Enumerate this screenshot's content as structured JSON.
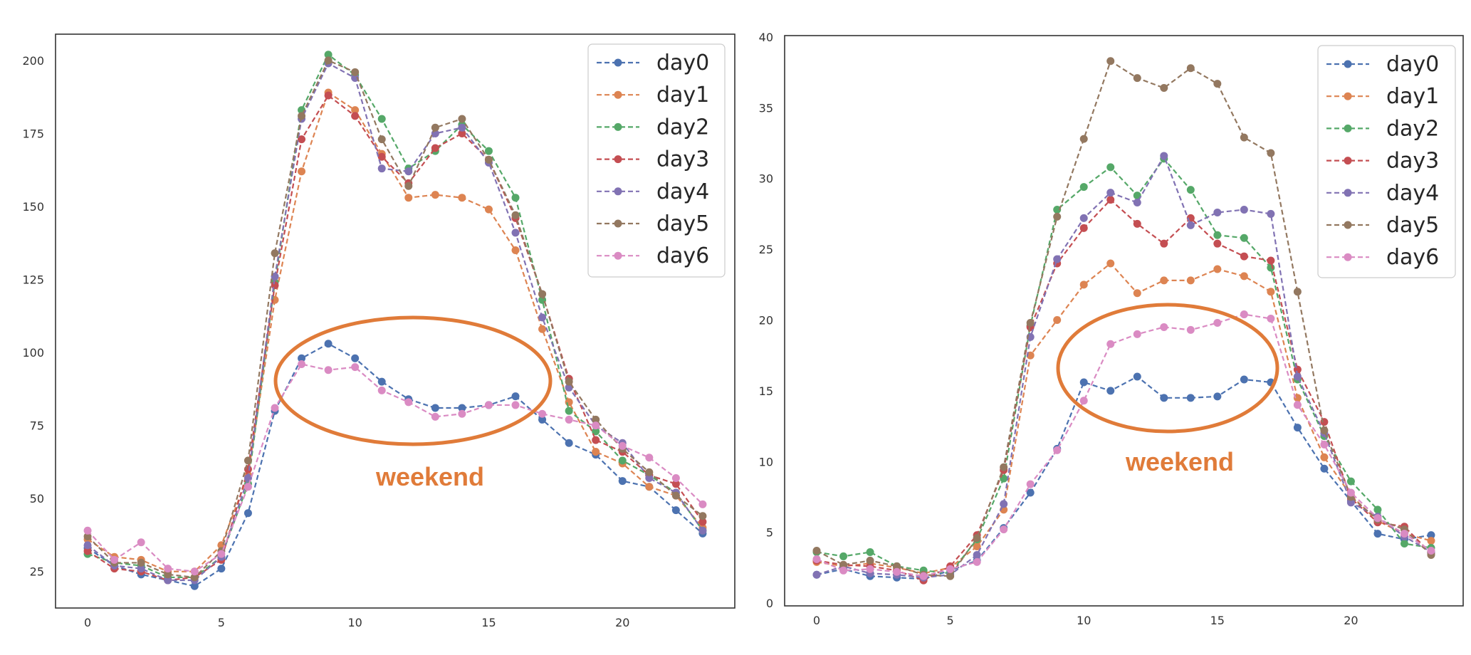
{
  "colors": {
    "series": [
      "#4c72b0",
      "#dd8452",
      "#55a868",
      "#c44e52",
      "#8172b3",
      "#937860",
      "#da8bc3"
    ],
    "annotation": "#e07b39",
    "axis": "#333333",
    "legend_border": "#cccccc"
  },
  "chart_data": [
    {
      "type": "line",
      "title": "",
      "xlabel": "",
      "ylabel": "",
      "x": [
        0,
        1,
        2,
        3,
        4,
        5,
        6,
        7,
        8,
        9,
        10,
        11,
        12,
        13,
        14,
        15,
        16,
        17,
        18,
        19,
        20,
        21,
        22,
        23
      ],
      "xlim": [
        -1.2,
        24.2
      ],
      "ylim": [
        12.5,
        209
      ],
      "xticks": [
        0,
        5,
        10,
        15,
        20
      ],
      "yticks": [
        25,
        50,
        75,
        100,
        125,
        150,
        175,
        200
      ],
      "grid": false,
      "legend": "top-right",
      "series": [
        {
          "name": "day0",
          "values": [
            33,
            27,
            24,
            22,
            20,
            26,
            45,
            80,
            98,
            103,
            98,
            90,
            84,
            81,
            81,
            82,
            85,
            77,
            69,
            65,
            56,
            54,
            46,
            38
          ]
        },
        {
          "name": "day1",
          "values": [
            36,
            30,
            29,
            25,
            25,
            34,
            58,
            118,
            162,
            189,
            183,
            168,
            153,
            154,
            153,
            149,
            135,
            108,
            83,
            66,
            62,
            54,
            51,
            40
          ]
        },
        {
          "name": "day2",
          "values": [
            31,
            28,
            27,
            23,
            23,
            30,
            55,
            124,
            183,
            202,
            195,
            180,
            163,
            169,
            178,
            169,
            153,
            118,
            80,
            73,
            63,
            58,
            52,
            39
          ]
        },
        {
          "name": "day3",
          "values": [
            32,
            26,
            25,
            22,
            23,
            29,
            60,
            123,
            173,
            188,
            181,
            167,
            158,
            170,
            175,
            166,
            146,
            120,
            91,
            70,
            66,
            58,
            55,
            42
          ]
        },
        {
          "name": "day4",
          "values": [
            34,
            27,
            26,
            22,
            22,
            30,
            57,
            126,
            180,
            199,
            194,
            163,
            162,
            175,
            177,
            165,
            141,
            112,
            88,
            75,
            69,
            57,
            52,
            39
          ]
        },
        {
          "name": "day5",
          "values": [
            37,
            28,
            28,
            24,
            23,
            32,
            63,
            134,
            181,
            200,
            196,
            173,
            157,
            177,
            180,
            166,
            147,
            120,
            90,
            77,
            67,
            59,
            51,
            44
          ]
        },
        {
          "name": "day6",
          "values": [
            39,
            29,
            35,
            26,
            25,
            31,
            54,
            81,
            96,
            94,
            95,
            87,
            83,
            78,
            79,
            82,
            82,
            79,
            77,
            75,
            68,
            64,
            57,
            48
          ]
        }
      ],
      "annotation": {
        "text": "weekend"
      }
    },
    {
      "type": "line",
      "title": "",
      "xlabel": "",
      "ylabel": "",
      "x": [
        0,
        1,
        2,
        3,
        4,
        5,
        6,
        7,
        8,
        9,
        10,
        11,
        12,
        13,
        14,
        15,
        16,
        17,
        18,
        19,
        20,
        21,
        22,
        23
      ],
      "xlim": [
        -1.2,
        24.2
      ],
      "ylim": [
        -0.2,
        40.1
      ],
      "xticks": [
        0,
        5,
        10,
        15,
        20
      ],
      "yticks": [
        0,
        5,
        10,
        15,
        20,
        25,
        30,
        35,
        40
      ],
      "grid": false,
      "legend": "top-right",
      "series": [
        {
          "name": "day0",
          "values": [
            2.0,
            2.4,
            1.9,
            1.8,
            1.7,
            2.3,
            3.0,
            5.3,
            7.8,
            10.9,
            15.6,
            15.0,
            16.0,
            14.5,
            14.5,
            14.6,
            15.8,
            15.6,
            12.4,
            9.5,
            7.2,
            4.9,
            4.5,
            4.8
          ]
        },
        {
          "name": "day1",
          "values": [
            2.9,
            2.6,
            2.8,
            2.5,
            2.1,
            2.5,
            4.0,
            6.6,
            17.5,
            20.0,
            22.5,
            24.0,
            21.9,
            22.8,
            22.8,
            23.6,
            23.1,
            22.0,
            14.5,
            10.3,
            7.6,
            5.8,
            4.9,
            4.4
          ]
        },
        {
          "name": "day2",
          "values": [
            3.6,
            3.3,
            3.6,
            2.6,
            2.3,
            2.1,
            4.5,
            8.8,
            19.6,
            27.8,
            29.4,
            30.8,
            28.8,
            31.4,
            29.2,
            26.0,
            25.8,
            23.7,
            15.8,
            11.8,
            8.6,
            6.6,
            4.2,
            3.9
          ]
        },
        {
          "name": "day3",
          "values": [
            3.0,
            2.7,
            2.6,
            2.3,
            1.6,
            2.6,
            4.8,
            9.4,
            19.5,
            24.0,
            26.5,
            28.5,
            26.8,
            25.4,
            27.2,
            25.4,
            24.5,
            24.2,
            16.5,
            12.8,
            7.4,
            5.7,
            5.4,
            3.5
          ]
        },
        {
          "name": "day4",
          "values": [
            2.0,
            2.6,
            2.1,
            2.0,
            1.8,
            2.0,
            3.4,
            7.0,
            18.8,
            24.3,
            27.2,
            29.0,
            28.3,
            31.6,
            26.7,
            27.6,
            27.8,
            27.5,
            16.0,
            12.0,
            7.1,
            6.1,
            4.7,
            3.6
          ]
        },
        {
          "name": "day5",
          "values": [
            3.7,
            2.7,
            3.0,
            2.6,
            2.0,
            1.9,
            4.6,
            9.6,
            19.8,
            27.3,
            32.8,
            38.3,
            37.1,
            36.4,
            37.8,
            36.7,
            32.9,
            31.8,
            22.0,
            12.2,
            7.5,
            5.9,
            5.2,
            3.4
          ]
        },
        {
          "name": "day6",
          "values": [
            3.1,
            2.3,
            2.4,
            2.2,
            1.9,
            2.4,
            2.9,
            5.2,
            8.4,
            10.8,
            14.3,
            18.3,
            19.0,
            19.5,
            19.3,
            19.8,
            20.4,
            20.1,
            14.0,
            11.2,
            7.8,
            6.0,
            4.9,
            3.7
          ]
        }
      ],
      "annotation": {
        "text": "weekend"
      }
    }
  ]
}
